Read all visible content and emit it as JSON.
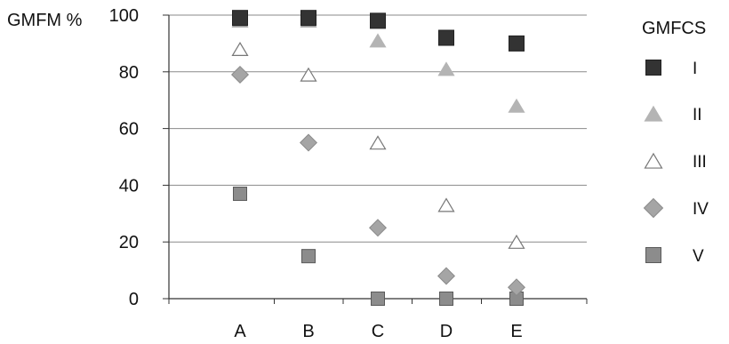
{
  "chart_data": {
    "type": "scatter",
    "ylabel": "GMFM %",
    "categories": [
      "A",
      "B",
      "C",
      "D",
      "E"
    ],
    "ylim": [
      0,
      100
    ],
    "yticks": [
      0,
      20,
      40,
      60,
      80,
      100
    ],
    "grid": true,
    "legend_title": "GMFCS",
    "legend_position": "right",
    "series": [
      {
        "name": "I",
        "marker": "square",
        "fill": "#333333",
        "stroke": "#222222",
        "values": [
          99,
          99,
          98,
          92,
          90
        ]
      },
      {
        "name": "II",
        "marker": "triangle",
        "fill": "#b4b4b4",
        "stroke": "#b4b4b4",
        "values": [
          98,
          98,
          91,
          81,
          68
        ]
      },
      {
        "name": "III",
        "marker": "triangle",
        "fill": "#ffffff",
        "stroke": "#777777",
        "values": [
          88,
          79,
          55,
          33,
          20
        ]
      },
      {
        "name": "IV",
        "marker": "diamond",
        "fill": "#a5a5a5",
        "stroke": "#8a8a8a",
        "values": [
          79,
          55,
          25,
          8,
          4
        ]
      },
      {
        "name": "V",
        "marker": "square",
        "fill": "#8c8c8c",
        "stroke": "#5a5a5a",
        "values": [
          37,
          15,
          0,
          0,
          0
        ]
      }
    ]
  }
}
